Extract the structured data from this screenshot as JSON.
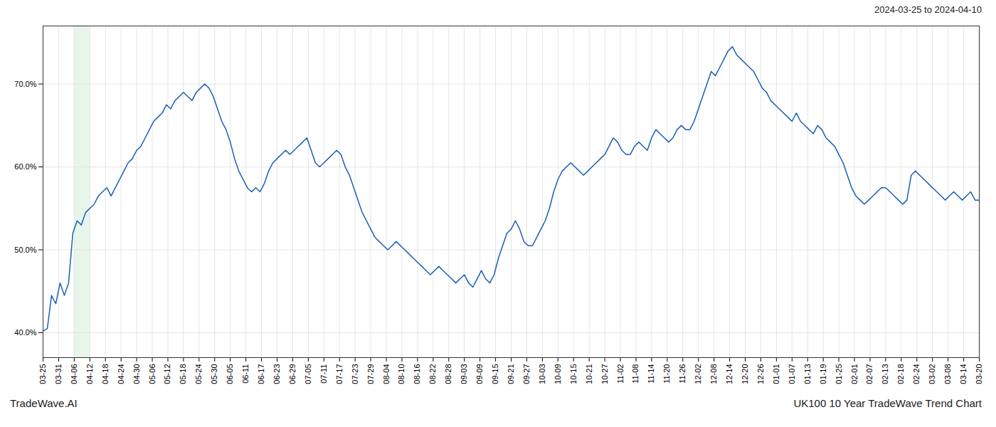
{
  "chart_data": {
    "type": "line",
    "title": "UK100 10 Year TradeWave Trend Chart",
    "subtitle": "2024-03-25 to 2024-04-10",
    "annotations": [
      "TradeWave.AI"
    ],
    "color": "#1a5fb4",
    "grid": true,
    "xlim": [
      0,
      220
    ],
    "xticks": [
      {
        "value": 0,
        "label": "03-25"
      },
      {
        "value": 3.6666666666666665,
        "label": "03-31"
      },
      {
        "value": 7.333333333333333,
        "label": "04-06"
      },
      {
        "value": 11,
        "label": "04-12"
      },
      {
        "value": 14.666666666666666,
        "label": "04-18"
      },
      {
        "value": 18.333333333333332,
        "label": "04-24"
      },
      {
        "value": 22,
        "label": "04-30"
      },
      {
        "value": 25.666666666666668,
        "label": "05-06"
      },
      {
        "value": 29.333333333333332,
        "label": "05-12"
      },
      {
        "value": 33,
        "label": "05-18"
      },
      {
        "value": 36.666666666666664,
        "label": "05-24"
      },
      {
        "value": 40.333333333333336,
        "label": "05-30"
      },
      {
        "value": 44,
        "label": "06-05"
      },
      {
        "value": 47.666666666666664,
        "label": "06-11"
      },
      {
        "value": 51.333333333333336,
        "label": "06-17"
      },
      {
        "value": 55,
        "label": "06-23"
      },
      {
        "value": 58.666666666666664,
        "label": "06-29"
      },
      {
        "value": 62.333333333333336,
        "label": "07-05"
      },
      {
        "value": 66,
        "label": "07-11"
      },
      {
        "value": 69.66666666666667,
        "label": "07-17"
      },
      {
        "value": 73.33333333333333,
        "label": "07-23"
      },
      {
        "value": 77,
        "label": "07-29"
      },
      {
        "value": 80.66666666666667,
        "label": "08-04"
      },
      {
        "value": 84.33333333333333,
        "label": "08-10"
      },
      {
        "value": 88,
        "label": "08-16"
      },
      {
        "value": 91.66666666666667,
        "label": "08-22"
      },
      {
        "value": 95.33333333333333,
        "label": "08-28"
      },
      {
        "value": 99,
        "label": "09-03"
      },
      {
        "value": 102.66666666666667,
        "label": "09-09"
      },
      {
        "value": 106.33333333333333,
        "label": "09-15"
      },
      {
        "value": 110,
        "label": "09-21"
      },
      {
        "value": 113.66666666666667,
        "label": "09-27"
      },
      {
        "value": 117.33333333333333,
        "label": "10-03"
      },
      {
        "value": 121,
        "label": "10-09"
      },
      {
        "value": 124.66666666666667,
        "label": "10-15"
      },
      {
        "value": 128.33333333333334,
        "label": "10-21"
      },
      {
        "value": 132,
        "label": "10-27"
      },
      {
        "value": 135.66666666666666,
        "label": "11-02"
      },
      {
        "value": 139.33333333333334,
        "label": "11-08"
      },
      {
        "value": 143,
        "label": "11-14"
      },
      {
        "value": 146.66666666666666,
        "label": "11-20"
      },
      {
        "value": 150.33333333333334,
        "label": "11-26"
      },
      {
        "value": 154,
        "label": "12-02"
      },
      {
        "value": 157.66666666666666,
        "label": "12-08"
      },
      {
        "value": 161.33333333333334,
        "label": "12-14"
      },
      {
        "value": 165,
        "label": "12-20"
      },
      {
        "value": 168.66666666666666,
        "label": "12-26"
      },
      {
        "value": 172.33333333333334,
        "label": "01-01"
      },
      {
        "value": 176,
        "label": "01-07"
      },
      {
        "value": 179.66666666666666,
        "label": "01-13"
      },
      {
        "value": 183.33333333333334,
        "label": "01-19"
      },
      {
        "value": 187,
        "label": "01-25"
      },
      {
        "value": 190.66666666666666,
        "label": "02-01"
      },
      {
        "value": 194.33333333333334,
        "label": "02-07"
      },
      {
        "value": 198,
        "label": "02-13"
      },
      {
        "value": 201.66666666666666,
        "label": "02-18"
      },
      {
        "value": 205.33333333333334,
        "label": "02-24"
      },
      {
        "value": 209,
        "label": "03-02"
      },
      {
        "value": 212.66666666666666,
        "label": "03-08"
      },
      {
        "value": 216.33333333333334,
        "label": "03-14"
      },
      {
        "value": 220,
        "label": "03-20"
      }
    ],
    "ylim": [
      37.0,
      77.0
    ],
    "yticks": [
      {
        "value": 40.0,
        "label": "40.0%"
      },
      {
        "value": 50.0,
        "label": "50.0%"
      },
      {
        "value": 60.0,
        "label": "60.0%"
      },
      {
        "value": 70.0,
        "label": "70.0%"
      }
    ],
    "shaded_span": {
      "x": [
        7.333333333333333,
        11
      ],
      "color": "#d4edda"
    },
    "values": [
      40.2,
      40.5,
      44.5,
      43.5,
      46.0,
      44.5,
      46.0,
      52.0,
      53.5,
      53.0,
      54.5,
      55.0,
      55.5,
      56.5,
      57.0,
      57.5,
      56.5,
      57.5,
      58.5,
      59.5,
      60.5,
      61.0,
      62.0,
      62.5,
      63.5,
      64.5,
      65.5,
      66.0,
      66.5,
      67.5,
      67.0,
      68.0,
      68.5,
      69.0,
      68.5,
      68.0,
      69.0,
      69.5,
      70.0,
      69.5,
      68.5,
      67.0,
      65.5,
      64.5,
      63.0,
      61.0,
      59.5,
      58.5,
      57.5,
      57.0,
      57.5,
      57.0,
      58.0,
      59.5,
      60.5,
      61.0,
      61.5,
      62.0,
      61.5,
      62.0,
      62.5,
      63.0,
      63.5,
      62.0,
      60.5,
      60.0,
      60.5,
      61.0,
      61.5,
      62.0,
      61.5,
      60.0,
      59.0,
      57.5,
      56.0,
      54.5,
      53.5,
      52.5,
      51.5,
      51.0,
      50.5,
      50.0,
      50.5,
      51.0,
      50.5,
      50.0,
      49.5,
      49.0,
      48.5,
      48.0,
      47.5,
      47.0,
      47.5,
      48.0,
      47.5,
      47.0,
      46.5,
      46.0,
      46.5,
      47.0,
      46.0,
      45.5,
      46.5,
      47.5,
      46.5,
      46.0,
      47.0,
      49.0,
      50.5,
      52.0,
      52.5,
      53.5,
      52.5,
      51.0,
      50.5,
      50.5,
      51.5,
      52.5,
      53.5,
      55.0,
      57.0,
      58.5,
      59.5,
      60.0,
      60.5,
      60.0,
      59.5,
      59.0,
      59.5,
      60.0,
      60.5,
      61.0,
      61.5,
      62.5,
      63.5,
      63.0,
      62.0,
      61.5,
      61.5,
      62.5,
      63.0,
      62.5,
      62.0,
      63.5,
      64.5,
      64.0,
      63.5,
      63.0,
      63.5,
      64.5,
      65.0,
      64.5,
      64.5,
      65.5,
      67.0,
      68.5,
      70.0,
      71.5,
      71.0,
      72.0,
      73.0,
      74.0,
      74.5,
      73.5,
      73.0,
      72.5,
      72.0,
      71.5,
      70.5,
      69.5,
      69.0,
      68.0,
      67.5,
      67.0,
      66.5,
      66.0,
      65.5,
      66.5,
      65.5,
      65.0,
      64.5,
      64.0,
      65.0,
      64.5,
      63.5,
      63.0,
      62.5,
      61.5,
      60.5,
      59.0,
      57.5,
      56.5,
      56.0,
      55.5,
      56.0,
      56.5,
      57.0,
      57.5,
      57.5,
      57.0,
      56.5,
      56.0,
      55.5,
      56.0,
      59.0,
      59.5,
      59.0,
      58.5,
      58.0,
      57.5,
      57.0,
      56.5,
      56.0,
      56.5,
      57.0,
      56.5,
      56.0,
      56.5,
      57.0,
      56.0,
      56.0
    ]
  }
}
